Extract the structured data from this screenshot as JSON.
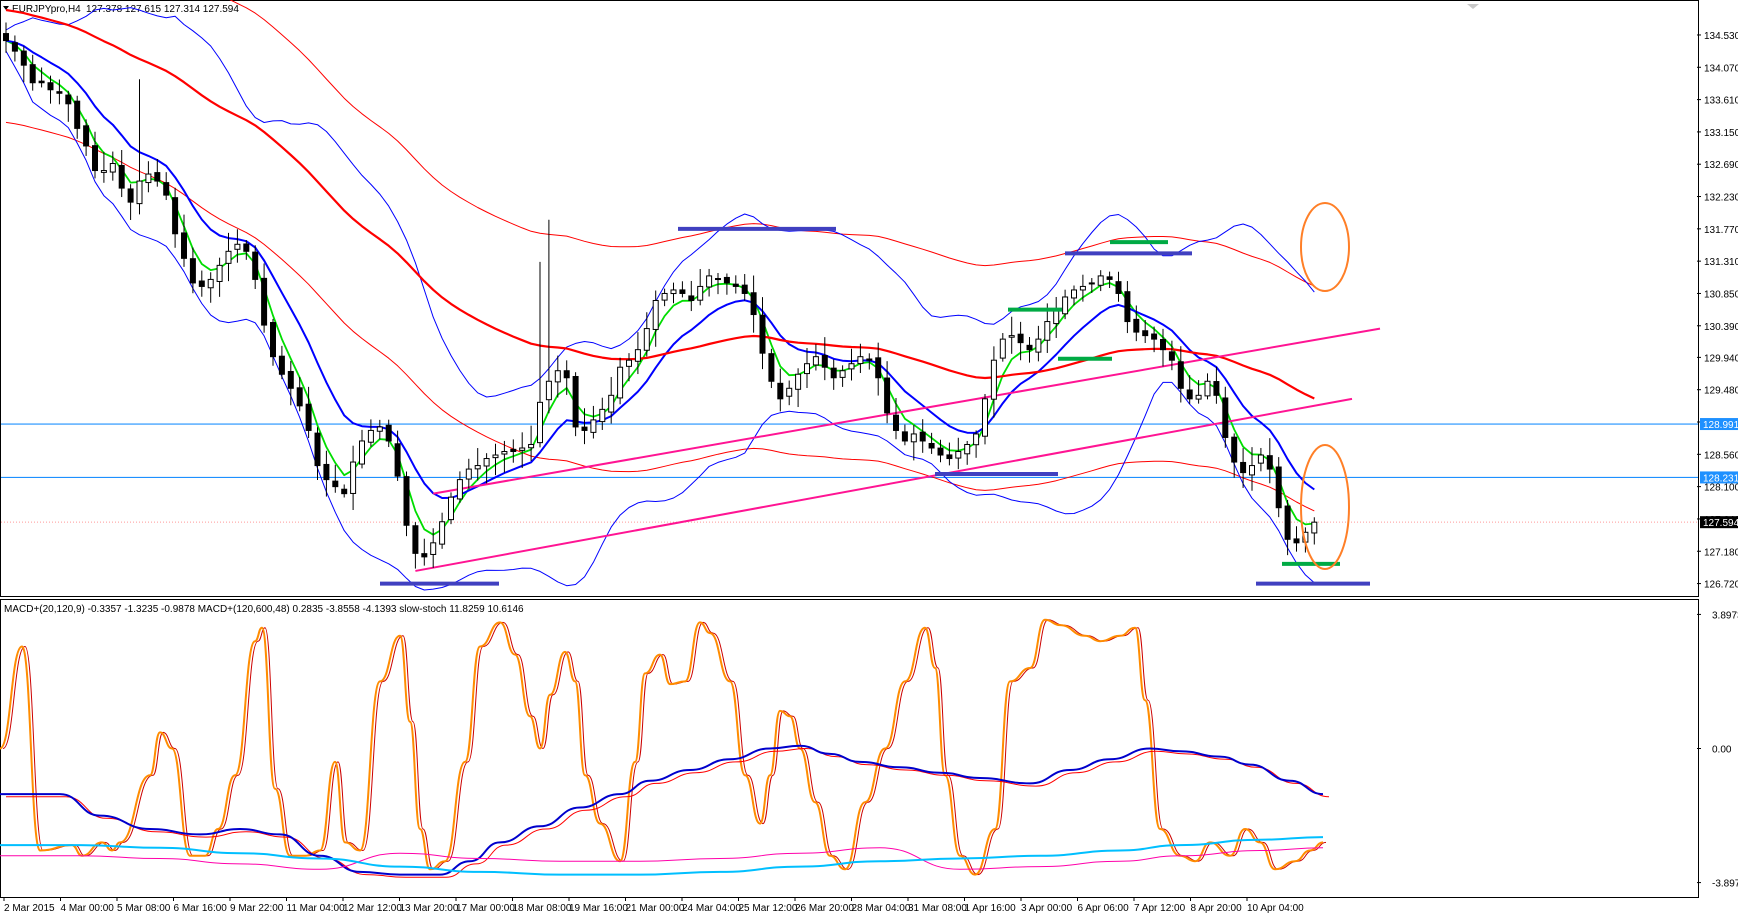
{
  "window": {
    "title": "EURJPYpro,H4",
    "ohlc": "127.378 127.615 127.314 127.594",
    "menu_icon": "triangle-down-icon"
  },
  "indicator_header": {
    "text": "MACD+(20,120,9) -0.3357 -1.3235 -0.9878  MACD+(120,600,48) 0.2835 -3.8558 -4.1393  slow-stoch 11.8259 10.6146"
  },
  "colors": {
    "bull_candle": "#ffffff",
    "bear_candle": "#000000",
    "ma_fast": "#00dd00",
    "ma_blue": "#0000ff",
    "ma_red": "#ff0000",
    "bollinger": "#0000ff",
    "envelope": "#ff0000",
    "trendline": "#ff1493",
    "hline": "#1e90ff",
    "marker_blue": "#4040c0",
    "marker_green": "#00aa44",
    "annotation_circle": "#ff7f27",
    "stoch": "#ff8c00",
    "stoch_signal": "#cc0000",
    "macd_blue": "#0000cc",
    "macd_cyan": "#00bfff",
    "macd_magenta": "#ff00aa",
    "price_tag_blue": "#1e90ff"
  },
  "chart_data": [
    {
      "type": "candlestick",
      "title": "EURJPYpro,H4",
      "symbol": "EURJPYpro",
      "timeframe": "H4",
      "ylim": [
        126.6,
        134.8
      ],
      "yticks": [
        "134.530",
        "134.070",
        "133.610",
        "133.150",
        "132.690",
        "132.230",
        "131.770",
        "131.310",
        "130.850",
        "130.390",
        "129.940",
        "129.480",
        "129.020",
        "128.560",
        "128.100",
        "127.640",
        "127.180",
        "126.720"
      ],
      "xtick_labels": [
        "2 Mar 2015",
        "4 Mar 00:00",
        "5 Mar 08:00",
        "6 Mar 16:00",
        "9 Mar 22:00",
        "11 Mar 04:00",
        "12 Mar 12:00",
        "13 Mar 20:00",
        "17 Mar 00:00",
        "18 Mar 08:00",
        "19 Mar 16:00",
        "21 Mar 00:00",
        "24 Mar 04:00",
        "25 Mar 12:00",
        "26 Mar 20:00",
        "28 Mar 04:00",
        "31 Mar 08:00",
        "1 Apr 16:00",
        "3 Apr 00:00",
        "6 Apr 06:00",
        "7 Apr 12:00",
        "8 Apr 20:00",
        "10 Apr 04:00"
      ],
      "price_tags": [
        {
          "label": "128.991",
          "value": 128.991,
          "style": "blue"
        },
        {
          "label": "128.231",
          "value": 128.231,
          "style": "blue"
        },
        {
          "label": "127.594",
          "value": 127.594,
          "style": "black"
        }
      ],
      "horizontal_lines": [
        128.991,
        128.231
      ],
      "current_price": 127.594,
      "closes": [
        134.45,
        134.3,
        134.1,
        133.85,
        133.85,
        133.75,
        133.7,
        133.55,
        133.2,
        132.95,
        132.6,
        132.6,
        132.7,
        132.35,
        132.15,
        132.45,
        132.55,
        132.45,
        132.25,
        131.7,
        131.35,
        131.0,
        130.95,
        131.05,
        131.25,
        131.45,
        131.55,
        131.45,
        131.05,
        130.4,
        129.95,
        129.7,
        129.5,
        129.25,
        128.9,
        128.4,
        128.2,
        128.1,
        128.0,
        128.45,
        128.75,
        128.9,
        128.95,
        128.75,
        128.25,
        127.55,
        127.15,
        127.1,
        127.3,
        127.6,
        127.95,
        128.2,
        128.35,
        128.4,
        128.5,
        128.55,
        128.6,
        128.6,
        128.65,
        128.7,
        129.3,
        129.6,
        129.75,
        129.65,
        128.95,
        128.9,
        129.05,
        129.2,
        129.4,
        129.8,
        129.9,
        130.05,
        130.35,
        130.75,
        130.85,
        130.9,
        130.85,
        130.75,
        130.95,
        131.1,
        131.05,
        131.0,
        130.95,
        130.85,
        130.55,
        130.0,
        129.6,
        129.35,
        129.5,
        129.7,
        129.85,
        129.95,
        129.8,
        129.65,
        129.75,
        129.85,
        129.95,
        129.9,
        129.65,
        129.15,
        128.9,
        128.75,
        128.85,
        128.75,
        128.65,
        128.55,
        128.5,
        128.6,
        128.7,
        128.85,
        129.35,
        129.9,
        130.2,
        130.25,
        130.15,
        130.05,
        130.2,
        130.45,
        130.6,
        130.8,
        130.9,
        130.95,
        131.0,
        131.1,
        131.05,
        130.85,
        130.45,
        130.3,
        130.25,
        130.2,
        130.05,
        129.9,
        129.5,
        129.35,
        129.4,
        129.6,
        129.4,
        128.8,
        128.45,
        128.3,
        128.4,
        128.55,
        128.35,
        127.8,
        127.35,
        127.3,
        127.45,
        127.594
      ],
      "overlays": [
        {
          "name": "EMA fast",
          "color": "#00dd00"
        },
        {
          "name": "EMA medium",
          "color": "#0000ff"
        },
        {
          "name": "EMA slow",
          "color": "#ff0000"
        },
        {
          "name": "Bollinger Bands",
          "color": "#0000ff"
        },
        {
          "name": "Envelopes",
          "color": "#ff0000"
        }
      ],
      "drawn_objects": {
        "trendlines": 4,
        "support_resistance_markers": 9,
        "annotation_circles": 2
      }
    },
    {
      "type": "line",
      "title": "MACD+(20,120,9) MACD+(120,600,48) slow-stoch",
      "ylim": [
        -4.2,
        4.2
      ],
      "yticks": [
        "3.8973",
        "0.00",
        "-3.8973"
      ],
      "series": [
        {
          "name": "slow-stoch",
          "color": "#ff8c00"
        },
        {
          "name": "slow-stoch signal",
          "color": "#cc0000"
        },
        {
          "name": "MACD+(20,120,9)",
          "color": "#0000cc"
        },
        {
          "name": "MACD+(20,120,9) signal",
          "color": "#ff0000"
        },
        {
          "name": "MACD+(120,600,48)",
          "color": "#00bfff"
        },
        {
          "name": "MACD+(120,600,48) signal",
          "color": "#ff00aa"
        }
      ],
      "stoch_peaks": [
        [
          0,
          50
        ],
        [
          22,
          88
        ],
        [
          40,
          12
        ],
        [
          72,
          14
        ],
        [
          82,
          10
        ],
        [
          102,
          15
        ],
        [
          112,
          12
        ],
        [
          120,
          15
        ],
        [
          150,
          40
        ],
        [
          160,
          56
        ],
        [
          172,
          50
        ],
        [
          190,
          10
        ],
        [
          205,
          10
        ],
        [
          218,
          20
        ],
        [
          235,
          40
        ],
        [
          255,
          90
        ],
        [
          262,
          95
        ],
        [
          275,
          35
        ],
        [
          290,
          10
        ],
        [
          305,
          10
        ],
        [
          320,
          12
        ],
        [
          335,
          45
        ],
        [
          345,
          15
        ],
        [
          360,
          12
        ],
        [
          380,
          75
        ],
        [
          400,
          92
        ],
        [
          410,
          60
        ],
        [
          420,
          20
        ],
        [
          430,
          5
        ],
        [
          445,
          8
        ],
        [
          465,
          45
        ],
        [
          480,
          88
        ],
        [
          500,
          97
        ],
        [
          515,
          85
        ],
        [
          530,
          62
        ],
        [
          540,
          50
        ],
        [
          550,
          70
        ],
        [
          565,
          86
        ],
        [
          575,
          75
        ],
        [
          585,
          40
        ],
        [
          600,
          22
        ],
        [
          620,
          8
        ],
        [
          635,
          45
        ],
        [
          645,
          78
        ],
        [
          660,
          85
        ],
        [
          670,
          74
        ],
        [
          685,
          75
        ],
        [
          700,
          97
        ],
        [
          710,
          93
        ],
        [
          730,
          75
        ],
        [
          745,
          40
        ],
        [
          760,
          22
        ],
        [
          770,
          40
        ],
        [
          780,
          64
        ],
        [
          790,
          62
        ],
        [
          800,
          50
        ],
        [
          815,
          30
        ],
        [
          830,
          10
        ],
        [
          845,
          5
        ],
        [
          865,
          30
        ],
        [
          885,
          50
        ],
        [
          905,
          75
        ],
        [
          925,
          95
        ],
        [
          935,
          80
        ],
        [
          945,
          40
        ],
        [
          960,
          10
        ],
        [
          975,
          3
        ],
        [
          995,
          20
        ],
        [
          1010,
          75
        ],
        [
          1030,
          80
        ],
        [
          1045,
          98
        ],
        [
          1060,
          96
        ],
        [
          1085,
          92
        ],
        [
          1100,
          90
        ],
        [
          1120,
          92
        ],
        [
          1135,
          95
        ],
        [
          1145,
          68
        ],
        [
          1160,
          20
        ],
        [
          1180,
          10
        ],
        [
          1195,
          8
        ],
        [
          1210,
          15
        ],
        [
          1230,
          10
        ],
        [
          1245,
          20
        ],
        [
          1260,
          15
        ],
        [
          1275,
          5
        ],
        [
          1295,
          8
        ],
        [
          1310,
          12
        ],
        [
          1323,
          15
        ]
      ],
      "macd_fast_points": [
        [
          0,
          33
        ],
        [
          60,
          33
        ],
        [
          100,
          25
        ],
        [
          150,
          20
        ],
        [
          200,
          18
        ],
        [
          240,
          20
        ],
        [
          280,
          18
        ],
        [
          320,
          10
        ],
        [
          360,
          4
        ],
        [
          400,
          3
        ],
        [
          440,
          3
        ],
        [
          470,
          8
        ],
        [
          500,
          15
        ],
        [
          540,
          21
        ],
        [
          580,
          28
        ],
        [
          620,
          33
        ],
        [
          650,
          38
        ],
        [
          690,
          42
        ],
        [
          730,
          46
        ],
        [
          770,
          50
        ],
        [
          800,
          51
        ],
        [
          830,
          48
        ],
        [
          860,
          45
        ],
        [
          900,
          43
        ],
        [
          940,
          41
        ],
        [
          980,
          39
        ],
        [
          1030,
          37
        ],
        [
          1070,
          42
        ],
        [
          1110,
          46
        ],
        [
          1150,
          50
        ],
        [
          1180,
          49
        ],
        [
          1220,
          47
        ],
        [
          1250,
          44
        ],
        [
          1290,
          38
        ],
        [
          1323,
          33
        ]
      ],
      "macd_slow_points": [
        [
          0,
          14
        ],
        [
          80,
          14
        ],
        [
          160,
          13
        ],
        [
          240,
          11
        ],
        [
          320,
          9
        ],
        [
          400,
          6
        ],
        [
          480,
          4
        ],
        [
          560,
          3
        ],
        [
          640,
          3
        ],
        [
          720,
          4
        ],
        [
          800,
          6
        ],
        [
          880,
          8
        ],
        [
          960,
          9
        ],
        [
          1040,
          10
        ],
        [
          1120,
          12
        ],
        [
          1180,
          14
        ],
        [
          1260,
          16
        ],
        [
          1323,
          17
        ]
      ]
    }
  ]
}
